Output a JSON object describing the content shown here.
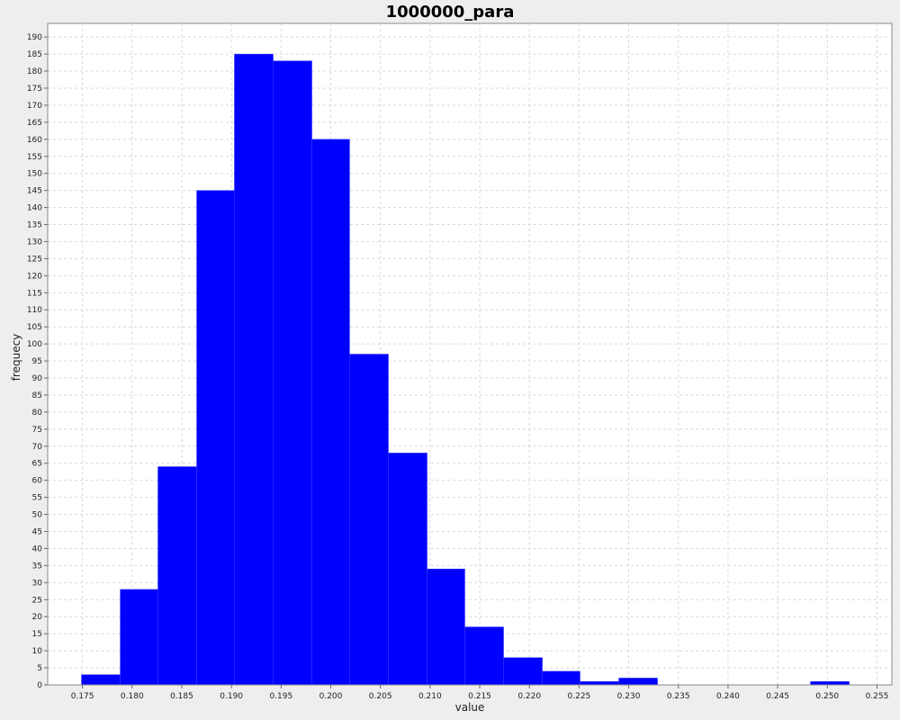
{
  "chart_data": {
    "type": "bar",
    "title": "1000000_para",
    "xlabel": "value",
    "ylabel": "frequecy",
    "xlim": [
      0.1715,
      0.2565
    ],
    "ylim": [
      0,
      194
    ],
    "x_ticks": [
      0.175,
      0.18,
      0.185,
      0.19,
      0.195,
      0.2,
      0.205,
      0.21,
      0.215,
      0.22,
      0.225,
      0.23,
      0.235,
      0.24,
      0.245,
      0.25,
      0.255
    ],
    "x_tick_labels": [
      "0.175",
      "0.180",
      "0.185",
      "0.190",
      "0.195",
      "0.200",
      "0.205",
      "0.210",
      "0.215",
      "0.220",
      "0.225",
      "0.230",
      "0.235",
      "0.240",
      "0.245",
      "0.250",
      "0.255"
    ],
    "y_ticks": [
      0,
      5,
      10,
      15,
      20,
      25,
      30,
      35,
      40,
      45,
      50,
      55,
      60,
      65,
      70,
      75,
      80,
      85,
      90,
      95,
      100,
      105,
      110,
      115,
      120,
      125,
      130,
      135,
      140,
      145,
      150,
      155,
      160,
      165,
      170,
      175,
      180,
      185,
      190
    ],
    "bins": [
      {
        "start": 0.1749,
        "end": 0.1788,
        "value": 3
      },
      {
        "start": 0.1788,
        "end": 0.1826,
        "value": 28
      },
      {
        "start": 0.1826,
        "end": 0.1865,
        "value": 64
      },
      {
        "start": 0.1865,
        "end": 0.1903,
        "value": 145
      },
      {
        "start": 0.1903,
        "end": 0.1942,
        "value": 185
      },
      {
        "start": 0.1942,
        "end": 0.1981,
        "value": 183
      },
      {
        "start": 0.1981,
        "end": 0.2019,
        "value": 160
      },
      {
        "start": 0.2019,
        "end": 0.2058,
        "value": 97
      },
      {
        "start": 0.2058,
        "end": 0.2097,
        "value": 68
      },
      {
        "start": 0.2097,
        "end": 0.2135,
        "value": 34
      },
      {
        "start": 0.2135,
        "end": 0.2174,
        "value": 17
      },
      {
        "start": 0.2174,
        "end": 0.2213,
        "value": 8
      },
      {
        "start": 0.2213,
        "end": 0.2251,
        "value": 4
      },
      {
        "start": 0.2251,
        "end": 0.229,
        "value": 1
      },
      {
        "start": 0.229,
        "end": 0.2329,
        "value": 2
      },
      {
        "start": 0.2483,
        "end": 0.2522,
        "value": 1
      }
    ],
    "bar_color": "#0000ff",
    "plot_background": "#ffffff",
    "grid": true,
    "grid_color": "#d9d9d9",
    "legend": false
  }
}
